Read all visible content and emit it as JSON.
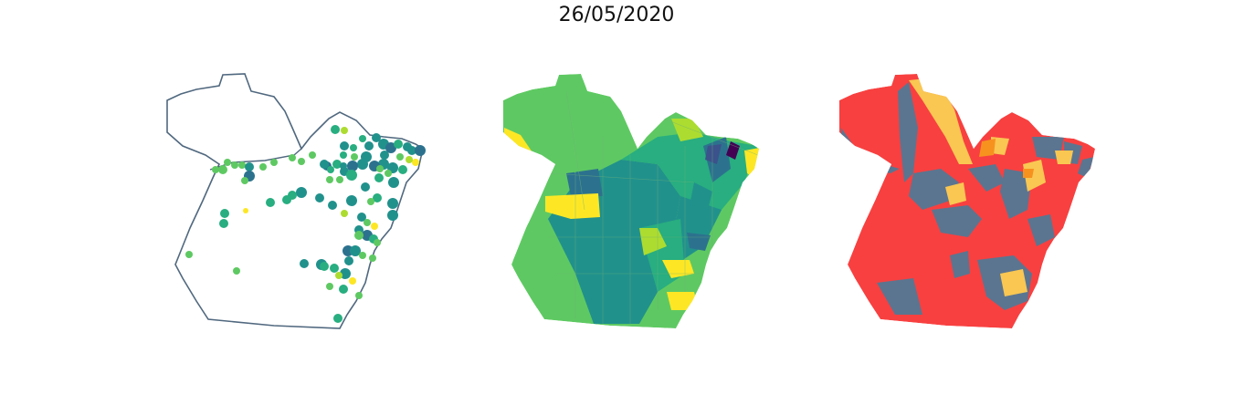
{
  "title": "26/05/2020",
  "panels": [
    {
      "id": "points",
      "type": "proportional-symbol map"
    },
    {
      "id": "choropleth-viridis",
      "type": "choropleth map"
    },
    {
      "id": "choropleth-categorical",
      "type": "choropleth map"
    }
  ],
  "colors": {
    "outline": "#50687f",
    "viridis": [
      "#440154",
      "#3b528b",
      "#2c728e",
      "#21918c",
      "#28ae80",
      "#5ec962",
      "#addc30",
      "#fde725"
    ],
    "categorical": {
      "red": "#f84040",
      "slate": "#5b7590",
      "yellow": "#f9c752",
      "orange": "#f7921f"
    }
  }
}
